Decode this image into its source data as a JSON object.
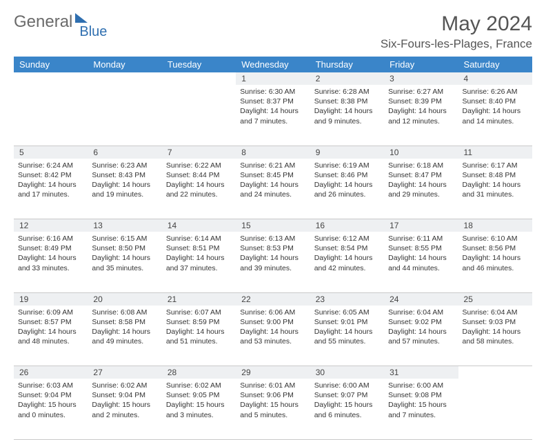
{
  "brand": {
    "general": "General",
    "blue": "Blue"
  },
  "title": "May 2024",
  "location": "Six-Fours-les-Plages, France",
  "colors": {
    "header_bg": "#3a85c9",
    "header_text": "#ffffff",
    "daynum_bg": "#eef0f2",
    "border": "#c9c9c9",
    "logo_gray": "#6a6a6a",
    "logo_blue": "#2f6fb0"
  },
  "weekdays": [
    "Sunday",
    "Monday",
    "Tuesday",
    "Wednesday",
    "Thursday",
    "Friday",
    "Saturday"
  ],
  "weeks": [
    [
      {
        "n": "",
        "lines": []
      },
      {
        "n": "",
        "lines": []
      },
      {
        "n": "",
        "lines": []
      },
      {
        "n": "1",
        "lines": [
          "Sunrise: 6:30 AM",
          "Sunset: 8:37 PM",
          "Daylight: 14 hours",
          "and 7 minutes."
        ]
      },
      {
        "n": "2",
        "lines": [
          "Sunrise: 6:28 AM",
          "Sunset: 8:38 PM",
          "Daylight: 14 hours",
          "and 9 minutes."
        ]
      },
      {
        "n": "3",
        "lines": [
          "Sunrise: 6:27 AM",
          "Sunset: 8:39 PM",
          "Daylight: 14 hours",
          "and 12 minutes."
        ]
      },
      {
        "n": "4",
        "lines": [
          "Sunrise: 6:26 AM",
          "Sunset: 8:40 PM",
          "Daylight: 14 hours",
          "and 14 minutes."
        ]
      }
    ],
    [
      {
        "n": "5",
        "lines": [
          "Sunrise: 6:24 AM",
          "Sunset: 8:42 PM",
          "Daylight: 14 hours",
          "and 17 minutes."
        ]
      },
      {
        "n": "6",
        "lines": [
          "Sunrise: 6:23 AM",
          "Sunset: 8:43 PM",
          "Daylight: 14 hours",
          "and 19 minutes."
        ]
      },
      {
        "n": "7",
        "lines": [
          "Sunrise: 6:22 AM",
          "Sunset: 8:44 PM",
          "Daylight: 14 hours",
          "and 22 minutes."
        ]
      },
      {
        "n": "8",
        "lines": [
          "Sunrise: 6:21 AM",
          "Sunset: 8:45 PM",
          "Daylight: 14 hours",
          "and 24 minutes."
        ]
      },
      {
        "n": "9",
        "lines": [
          "Sunrise: 6:19 AM",
          "Sunset: 8:46 PM",
          "Daylight: 14 hours",
          "and 26 minutes."
        ]
      },
      {
        "n": "10",
        "lines": [
          "Sunrise: 6:18 AM",
          "Sunset: 8:47 PM",
          "Daylight: 14 hours",
          "and 29 minutes."
        ]
      },
      {
        "n": "11",
        "lines": [
          "Sunrise: 6:17 AM",
          "Sunset: 8:48 PM",
          "Daylight: 14 hours",
          "and 31 minutes."
        ]
      }
    ],
    [
      {
        "n": "12",
        "lines": [
          "Sunrise: 6:16 AM",
          "Sunset: 8:49 PM",
          "Daylight: 14 hours",
          "and 33 minutes."
        ]
      },
      {
        "n": "13",
        "lines": [
          "Sunrise: 6:15 AM",
          "Sunset: 8:50 PM",
          "Daylight: 14 hours",
          "and 35 minutes."
        ]
      },
      {
        "n": "14",
        "lines": [
          "Sunrise: 6:14 AM",
          "Sunset: 8:51 PM",
          "Daylight: 14 hours",
          "and 37 minutes."
        ]
      },
      {
        "n": "15",
        "lines": [
          "Sunrise: 6:13 AM",
          "Sunset: 8:53 PM",
          "Daylight: 14 hours",
          "and 39 minutes."
        ]
      },
      {
        "n": "16",
        "lines": [
          "Sunrise: 6:12 AM",
          "Sunset: 8:54 PM",
          "Daylight: 14 hours",
          "and 42 minutes."
        ]
      },
      {
        "n": "17",
        "lines": [
          "Sunrise: 6:11 AM",
          "Sunset: 8:55 PM",
          "Daylight: 14 hours",
          "and 44 minutes."
        ]
      },
      {
        "n": "18",
        "lines": [
          "Sunrise: 6:10 AM",
          "Sunset: 8:56 PM",
          "Daylight: 14 hours",
          "and 46 minutes."
        ]
      }
    ],
    [
      {
        "n": "19",
        "lines": [
          "Sunrise: 6:09 AM",
          "Sunset: 8:57 PM",
          "Daylight: 14 hours",
          "and 48 minutes."
        ]
      },
      {
        "n": "20",
        "lines": [
          "Sunrise: 6:08 AM",
          "Sunset: 8:58 PM",
          "Daylight: 14 hours",
          "and 49 minutes."
        ]
      },
      {
        "n": "21",
        "lines": [
          "Sunrise: 6:07 AM",
          "Sunset: 8:59 PM",
          "Daylight: 14 hours",
          "and 51 minutes."
        ]
      },
      {
        "n": "22",
        "lines": [
          "Sunrise: 6:06 AM",
          "Sunset: 9:00 PM",
          "Daylight: 14 hours",
          "and 53 minutes."
        ]
      },
      {
        "n": "23",
        "lines": [
          "Sunrise: 6:05 AM",
          "Sunset: 9:01 PM",
          "Daylight: 14 hours",
          "and 55 minutes."
        ]
      },
      {
        "n": "24",
        "lines": [
          "Sunrise: 6:04 AM",
          "Sunset: 9:02 PM",
          "Daylight: 14 hours",
          "and 57 minutes."
        ]
      },
      {
        "n": "25",
        "lines": [
          "Sunrise: 6:04 AM",
          "Sunset: 9:03 PM",
          "Daylight: 14 hours",
          "and 58 minutes."
        ]
      }
    ],
    [
      {
        "n": "26",
        "lines": [
          "Sunrise: 6:03 AM",
          "Sunset: 9:04 PM",
          "Daylight: 15 hours",
          "and 0 minutes."
        ]
      },
      {
        "n": "27",
        "lines": [
          "Sunrise: 6:02 AM",
          "Sunset: 9:04 PM",
          "Daylight: 15 hours",
          "and 2 minutes."
        ]
      },
      {
        "n": "28",
        "lines": [
          "Sunrise: 6:02 AM",
          "Sunset: 9:05 PM",
          "Daylight: 15 hours",
          "and 3 minutes."
        ]
      },
      {
        "n": "29",
        "lines": [
          "Sunrise: 6:01 AM",
          "Sunset: 9:06 PM",
          "Daylight: 15 hours",
          "and 5 minutes."
        ]
      },
      {
        "n": "30",
        "lines": [
          "Sunrise: 6:00 AM",
          "Sunset: 9:07 PM",
          "Daylight: 15 hours",
          "and 6 minutes."
        ]
      },
      {
        "n": "31",
        "lines": [
          "Sunrise: 6:00 AM",
          "Sunset: 9:08 PM",
          "Daylight: 15 hours",
          "and 7 minutes."
        ]
      },
      {
        "n": "",
        "lines": []
      }
    ]
  ]
}
